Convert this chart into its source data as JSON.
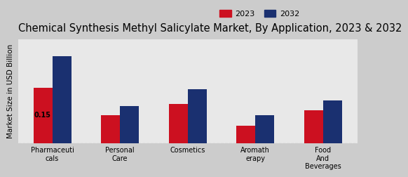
{
  "title": "Chemical Synthesis Methyl Salicylate Market, By Application, 2023 & 2032",
  "categories": [
    "Pharmaceuti\ncals",
    "Personal\nCare",
    "Cosmetics",
    "Aromath\nerapy",
    "Food\nAnd\nBeverages"
  ],
  "values_2023": [
    0.15,
    0.075,
    0.105,
    0.048,
    0.088
  ],
  "values_2032": [
    0.235,
    0.1,
    0.145,
    0.075,
    0.115
  ],
  "color_2023": "#cc1020",
  "color_2032": "#1a3070",
  "ylabel": "Market Size in USD Billion",
  "annotation_text": "0.15",
  "background_color_top": "#d0d0d0",
  "background_color_bottom": "#f5f5f5",
  "legend_labels": [
    "2023",
    "2032"
  ],
  "ylim": [
    0,
    0.28
  ],
  "bar_width": 0.28,
  "title_fontsize": 10.5,
  "axis_label_fontsize": 7.5,
  "tick_fontsize": 7.0,
  "legend_fontsize": 8.0
}
